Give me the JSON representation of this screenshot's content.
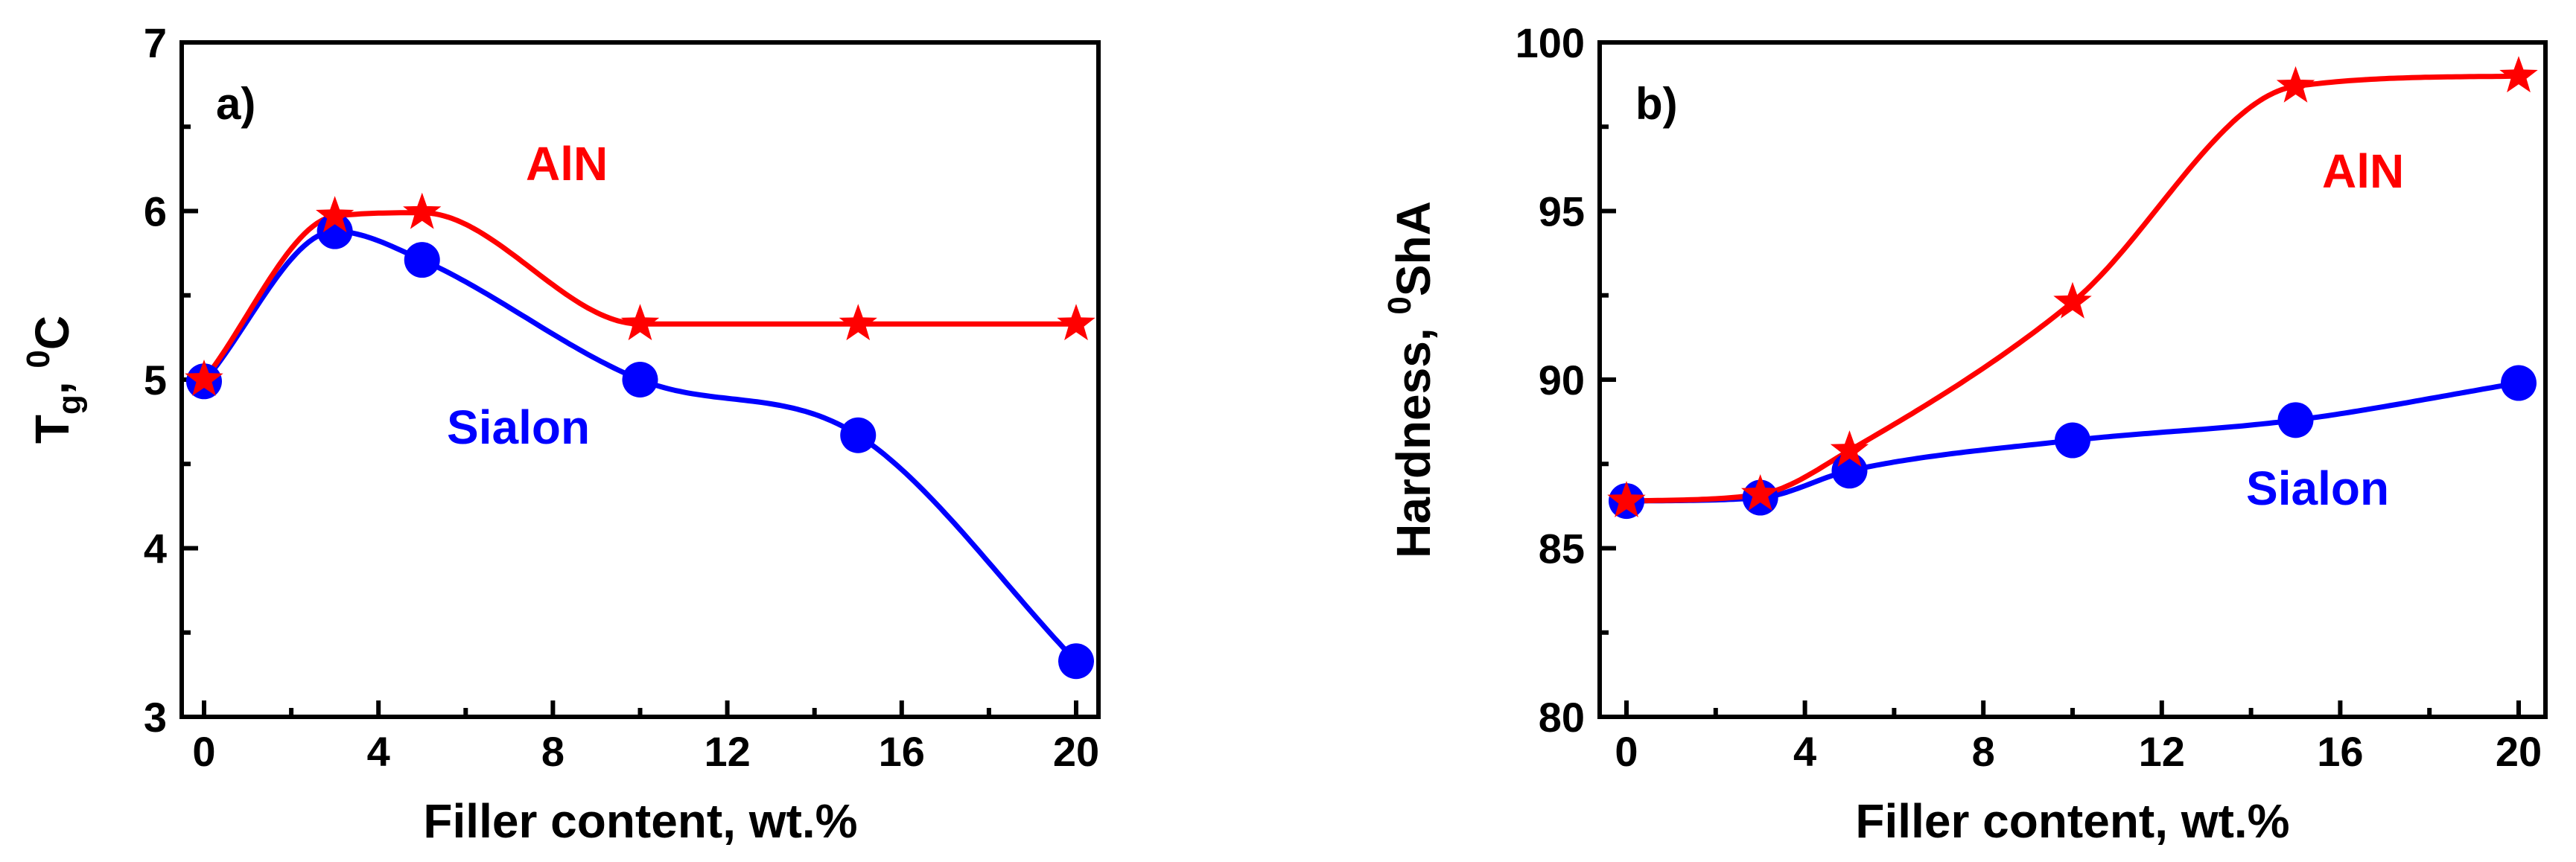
{
  "colors": {
    "aln": "#ff0000",
    "sialon": "#0000ff",
    "axis": "#000000"
  },
  "chart_data": [
    {
      "type": "line",
      "panel_label": "a)",
      "xlabel": "Filler content, wt.%",
      "ylabel": {
        "main": "T",
        "sub": "g",
        "sep": ", ",
        "sup": "0",
        "unit": "C"
      },
      "xlim": [
        0,
        20
      ],
      "ylim": [
        3,
        7
      ],
      "xticks": [
        0,
        4,
        8,
        12,
        16,
        20
      ],
      "yticks": [
        3,
        4,
        5,
        6,
        7
      ],
      "series": [
        {
          "name": "AlN",
          "label": "AlN",
          "marker": "star",
          "color": "#ff0000",
          "x": [
            0,
            3,
            5,
            10,
            15,
            20
          ],
          "y": [
            5.0,
            5.97,
            5.99,
            5.33,
            5.33,
            5.33
          ]
        },
        {
          "name": "Sialon",
          "label": "Sialon",
          "marker": "circle",
          "color": "#0000ff",
          "x": [
            0,
            3,
            5,
            10,
            15,
            20
          ],
          "y": [
            4.99,
            5.88,
            5.71,
            5.0,
            4.67,
            3.33
          ]
        }
      ]
    },
    {
      "type": "line",
      "panel_label": "b)",
      "xlabel": "Filler content, wt.%",
      "ylabel": {
        "main": "Hardness, ",
        "sup": "0",
        "unit": "ShA"
      },
      "xlim": [
        0,
        20
      ],
      "ylim": [
        80,
        100
      ],
      "xticks": [
        0,
        4,
        8,
        12,
        16,
        20
      ],
      "yticks": [
        80,
        85,
        90,
        95,
        100
      ],
      "series": [
        {
          "name": "AlN",
          "label": "AlN",
          "marker": "star",
          "color": "#ff0000",
          "x": [
            0,
            3,
            5,
            10,
            15,
            20
          ],
          "y": [
            86.4,
            86.6,
            87.9,
            92.3,
            98.7,
            99.0
          ]
        },
        {
          "name": "Sialon",
          "label": "Sialon",
          "marker": "circle",
          "color": "#0000ff",
          "x": [
            0,
            3,
            5,
            10,
            15,
            20
          ],
          "y": [
            86.4,
            86.5,
            87.3,
            88.2,
            88.8,
            89.9
          ]
        }
      ]
    }
  ]
}
